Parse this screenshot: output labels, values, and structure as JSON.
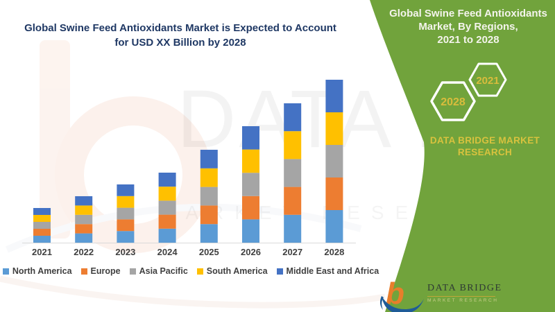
{
  "left_panel": {
    "title_line1": "Global Swine Feed Antioxidants Market is Expected to Account",
    "title_line2": "for USD XX Billion by 2028",
    "watermark_big_text": "DATA BRI",
    "watermark_row_text": "MARKET RESEARCH"
  },
  "chart_data": {
    "type": "bar",
    "stacked": true,
    "title": "Global Swine Feed Antioxidants Market is Expected to Account for USD XX Billion by 2028",
    "xlabel": "",
    "ylabel": "",
    "y_axis_labels_visible": false,
    "grid": false,
    "legend_position": "bottom",
    "value_note": "no y-axis shown; values are relative stacked-segment sizes estimated from bar heights",
    "categories": [
      "2021",
      "2022",
      "2023",
      "2024",
      "2025",
      "2026",
      "2027",
      "2028"
    ],
    "series": [
      {
        "name": "North America",
        "color": "#5B9BD5",
        "values": [
          10,
          13.4,
          16.8,
          20.2,
          26.8,
          33.6,
          40.2,
          47
        ]
      },
      {
        "name": "Europe",
        "color": "#ED7D31",
        "values": [
          10,
          13.4,
          16.8,
          20.2,
          26.8,
          33.6,
          40.2,
          47
        ]
      },
      {
        "name": "Asia Pacific",
        "color": "#A5A5A5",
        "values": [
          10,
          13.4,
          16.8,
          20.2,
          26.8,
          33.6,
          40.2,
          47
        ]
      },
      {
        "name": "South America",
        "color": "#FFC000",
        "values": [
          10,
          13.4,
          16.8,
          20.2,
          26.8,
          33.6,
          40.2,
          47
        ]
      },
      {
        "name": "Middle East and Africa",
        "color": "#4472C4",
        "values": [
          10,
          13.4,
          16.8,
          20.2,
          26.8,
          33.6,
          40.2,
          47
        ]
      }
    ],
    "totals": [
      50,
      67,
      84,
      101,
      134,
      168,
      201,
      235
    ]
  },
  "right_panel": {
    "title_line1": "Global Swine Feed Antioxidants",
    "title_line2": "Market, By Regions,",
    "title_line3": "2021 to 2028",
    "hexagon_front_label": "2021",
    "hexagon_back_label": "2028",
    "brand_line1": "DATA BRIDGE MARKET",
    "brand_line2": "RESEARCH"
  },
  "footer_logo": {
    "letter": "b",
    "name": "DATA BRIDGE",
    "subtitle": "MARKET RESEARCH"
  },
  "colors": {
    "green_background": "#71A33C",
    "navy_title": "#1F3864",
    "gold_text": "#D8C23E",
    "hexagon_label": "#D9BC3C",
    "axis_labels": "#404040",
    "axis_line": "#D9D9D9",
    "logo_orange": "#E87E2B",
    "logo_blue": "#1F5C97",
    "logo_name": "#2E3A34"
  }
}
